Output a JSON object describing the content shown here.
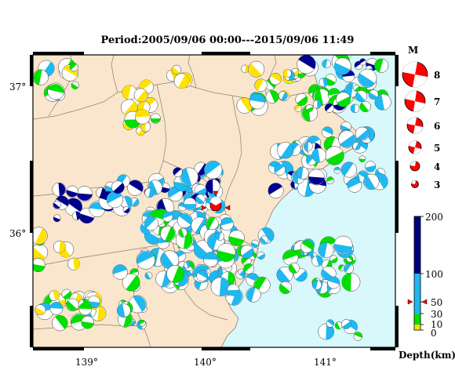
{
  "title": "Period:2005/09/06 00:00---2015/09/06 11:49",
  "map": {
    "lon_ticks": [
      "139°",
      "140°",
      "141°"
    ],
    "lat_ticks": [
      "37°",
      "36°"
    ],
    "land_color": "#fae6cc",
    "sea_color": "#d8f8fc",
    "border_color": "#8a7e76"
  },
  "magnitude_legend": {
    "title": "M",
    "items": [
      "8",
      "7",
      "6",
      "5",
      "4",
      "3"
    ],
    "fill_color": "#ff0000"
  },
  "depth_legend": {
    "label": "Depth(km)",
    "ticks": [
      "200",
      "100",
      "50",
      "30",
      "10",
      "0"
    ],
    "bands": [
      {
        "from": 0,
        "to": 10,
        "color": "#ffe200"
      },
      {
        "from": 10,
        "to": 30,
        "color": "#00e000"
      },
      {
        "from": 30,
        "to": 100,
        "color": "#20b8f0"
      },
      {
        "from": 100,
        "to": 200,
        "color": "#00007f"
      }
    ],
    "marker_depth": 50
  },
  "main_event": {
    "label": "epicenter",
    "color": "#ff0000"
  }
}
